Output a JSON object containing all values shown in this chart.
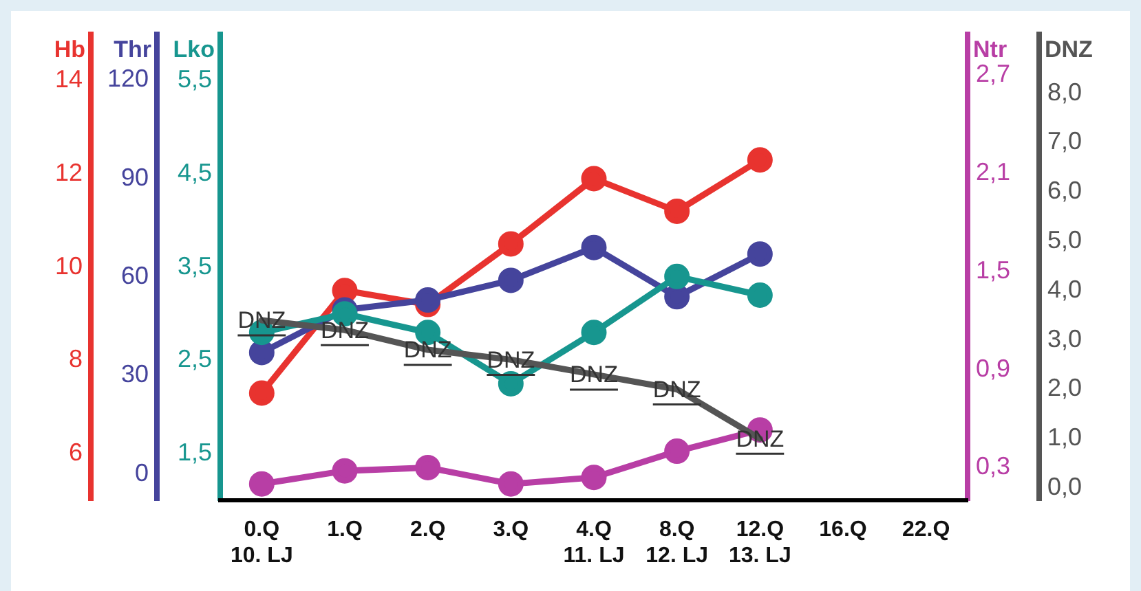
{
  "chart_data": [
    {
      "type": "line",
      "categories": [
        "0.Q\n10. LJ",
        "1.Q",
        "2.Q",
        "3.Q",
        "4.Q\n11. LJ",
        "8.Q\n12. LJ",
        "12.Q\n13. LJ",
        "16.Q",
        "22.Q"
      ],
      "ylabel": "Hb",
      "ylim": [
        5,
        15
      ],
      "yticks": [
        6,
        8,
        10,
        12,
        14
      ],
      "y2label": "Thr",
      "y2lim": [
        -8,
        134
      ],
      "y2ticks": [
        0,
        30,
        60,
        90,
        120
      ],
      "y3label": "Lko",
      "y3lim": [
        1,
        6
      ],
      "y3ticks": [
        {
          "value": 1.5,
          "label": "1,5"
        },
        {
          "value": 2.5,
          "label": "2,5"
        },
        {
          "value": 3.5,
          "label": "3,5"
        },
        {
          "value": 4.5,
          "label": "4,5"
        },
        {
          "value": 5.5,
          "label": "5,5"
        }
      ],
      "marker": "circle",
      "grid": false,
      "legend": false,
      "series": [
        {
          "color": "#e8332f",
          "axis": "y",
          "values": [
            7.3,
            9.5,
            9.2,
            10.5,
            11.9,
            11.2,
            12.3,
            null,
            null
          ]
        },
        {
          "color": "#45449c",
          "axis": "y2",
          "values": [
            37,
            50,
            53,
            59,
            69,
            54,
            67,
            null,
            null
          ]
        },
        {
          "color": "#17968f",
          "axis": "y3",
          "values": [
            2.8,
            3.0,
            2.8,
            2.25,
            2.8,
            3.4,
            3.2,
            null,
            null
          ]
        }
      ]
    },
    {
      "type": "line",
      "categories": [
        null,
        null,
        null,
        null,
        null,
        null,
        null,
        null,
        null
      ],
      "tick_labels": "y",
      "ylabel": "Ntr",
      "ylim": [
        0.1,
        2.95
      ],
      "yticks": [
        {
          "value": 0.3,
          "label": "0,3"
        },
        {
          "value": 0.9,
          "label": "0,9"
        },
        {
          "value": 1.5,
          "label": "1,5"
        },
        {
          "value": 2.1,
          "label": "2,1"
        },
        {
          "value": 2.7,
          "label": "2,7"
        }
      ],
      "y2label": "DNZ",
      "y2lim": [
        -0.25,
        9.2
      ],
      "y2ticks": [
        {
          "value": 0,
          "label": "0,0"
        },
        {
          "value": 1,
          "label": "1,0"
        },
        {
          "value": 2,
          "label": "2,0"
        },
        {
          "value": 3,
          "label": "3,0"
        },
        {
          "value": 4,
          "label": "4,0"
        },
        {
          "value": 5,
          "label": "5,0"
        },
        {
          "value": 6,
          "label": "6,0"
        },
        {
          "value": 7,
          "label": "7,0"
        },
        {
          "value": 8,
          "label": "8,0"
        }
      ],
      "marker": "circle",
      "grid": false,
      "legend": false,
      "series": [
        {
          "color": "#b83ea5",
          "axis": "y",
          "values": [
            0.2,
            0.28,
            0.3,
            0.2,
            0.24,
            0.4,
            0.53,
            null,
            null
          ]
        },
        {
          "color": "#555555",
          "axis": "y2",
          "marker": "none",
          "values": [
            3.4,
            3.2,
            2.8,
            2.6,
            2.3,
            2.0,
            1.0,
            null,
            null
          ],
          "value_labels": [
            "DNZ",
            "DNZ",
            "DNZ",
            "DNZ",
            "DNZ",
            "DNZ",
            "DNZ",
            null,
            null
          ]
        }
      ]
    }
  ]
}
